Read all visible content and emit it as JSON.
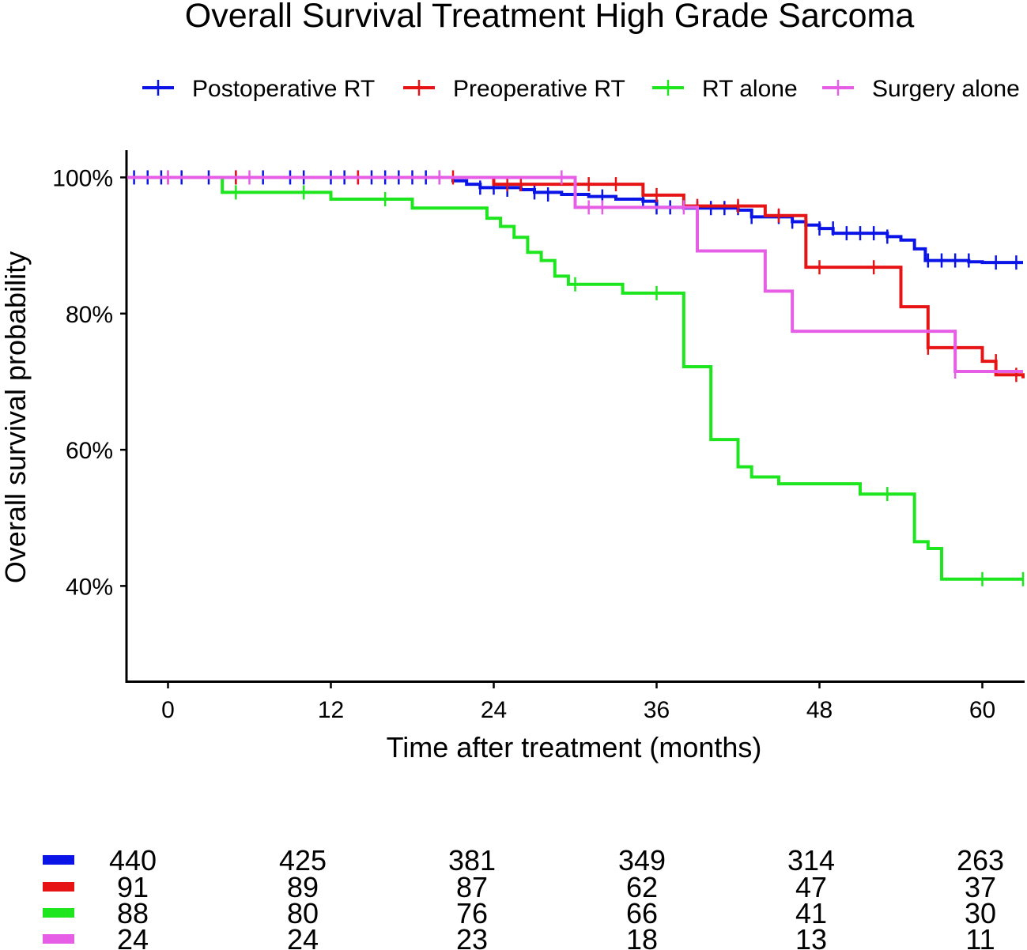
{
  "chart_data": {
    "type": "line",
    "subtype": "kaplan-meier",
    "title": "Overall Survival Treatment High Grade Sarcoma",
    "xlabel": "Time after treatment (months)",
    "ylabel": "Overall survival probability",
    "xlim": [
      -3,
      63
    ],
    "ylim": [
      26,
      104
    ],
    "xticks": [
      0,
      12,
      24,
      36,
      48,
      60
    ],
    "yticks": [
      40,
      60,
      80,
      100
    ],
    "ytick_labels": [
      "40%",
      "60%",
      "80%",
      "100%"
    ],
    "legend_position": "top",
    "series": [
      {
        "name": "Postoperative RT",
        "color": "#0a14e6",
        "steps": [
          [
            -3,
            100
          ],
          [
            21,
            99.5
          ],
          [
            22,
            99
          ],
          [
            23,
            98.5
          ],
          [
            26,
            98.2
          ],
          [
            27,
            97.8
          ],
          [
            29,
            97.5
          ],
          [
            31,
            97.2
          ],
          [
            33,
            96.8
          ],
          [
            35,
            96.5
          ],
          [
            36,
            95.6
          ],
          [
            38,
            95.5
          ],
          [
            42,
            95.2
          ],
          [
            43,
            94.2
          ],
          [
            46,
            93.5
          ],
          [
            47,
            93
          ],
          [
            48,
            92.5
          ],
          [
            49,
            91.8
          ],
          [
            53,
            91.3
          ],
          [
            54,
            90.8
          ],
          [
            55,
            89.5
          ],
          [
            55.8,
            87.8
          ],
          [
            59,
            87.6
          ],
          [
            60,
            87.5
          ],
          [
            63,
            87.5
          ]
        ],
        "censors": [
          [
            -2.5,
            100
          ],
          [
            -1.5,
            100
          ],
          [
            -0.5,
            100
          ],
          [
            1,
            100
          ],
          [
            3,
            100
          ],
          [
            5,
            100
          ],
          [
            7,
            100
          ],
          [
            9,
            100
          ],
          [
            10,
            100
          ],
          [
            12,
            100
          ],
          [
            13,
            100
          ],
          [
            14,
            100
          ],
          [
            15,
            100
          ],
          [
            16,
            100
          ],
          [
            17,
            100
          ],
          [
            18,
            100
          ],
          [
            19,
            100
          ],
          [
            20,
            100
          ],
          [
            23,
            98.5
          ],
          [
            24,
            98.5
          ],
          [
            25,
            98.2
          ],
          [
            27,
            97.8
          ],
          [
            28,
            97.5
          ],
          [
            30,
            97.5
          ],
          [
            32,
            97.2
          ],
          [
            35,
            96.8
          ],
          [
            36,
            95.6
          ],
          [
            37,
            95.6
          ],
          [
            39,
            95.5
          ],
          [
            40,
            95.5
          ],
          [
            41,
            95.5
          ],
          [
            42,
            95.5
          ],
          [
            43,
            94.2
          ],
          [
            45,
            94.2
          ],
          [
            46,
            93.5
          ],
          [
            48,
            92.5
          ],
          [
            49,
            92.5
          ],
          [
            50,
            91.8
          ],
          [
            51,
            91.8
          ],
          [
            52,
            91.8
          ],
          [
            53,
            91.3
          ],
          [
            56,
            87.8
          ],
          [
            57,
            87.8
          ],
          [
            58,
            87.8
          ],
          [
            59,
            87.8
          ],
          [
            61,
            87.5
          ],
          [
            62.5,
            87.5
          ]
        ]
      },
      {
        "name": "Preoperative RT",
        "color": "#e61414",
        "steps": [
          [
            -3,
            100
          ],
          [
            24,
            99
          ],
          [
            35,
            97.4
          ],
          [
            38,
            95.8
          ],
          [
            44,
            94.4
          ],
          [
            47,
            86.8
          ],
          [
            54,
            81
          ],
          [
            56,
            75
          ],
          [
            60,
            73
          ],
          [
            61,
            71
          ],
          [
            63,
            70.5
          ]
        ],
        "censors": [
          [
            0,
            100
          ],
          [
            5,
            100
          ],
          [
            14,
            100
          ],
          [
            21,
            100
          ],
          [
            25,
            99
          ],
          [
            26,
            99
          ],
          [
            31,
            99
          ],
          [
            33,
            99
          ],
          [
            36,
            97.4
          ],
          [
            39,
            95.8
          ],
          [
            42,
            95.8
          ],
          [
            45,
            94.4
          ],
          [
            48,
            86.8
          ],
          [
            52,
            86.8
          ],
          [
            56,
            75
          ],
          [
            61,
            73
          ],
          [
            62.5,
            71
          ]
        ]
      },
      {
        "name": "RT alone",
        "color": "#1ee61e",
        "steps": [
          [
            -3,
            100
          ],
          [
            4,
            97.8
          ],
          [
            12,
            96.8
          ],
          [
            18,
            95.5
          ],
          [
            23.5,
            94
          ],
          [
            24.5,
            92.8
          ],
          [
            25.5,
            91.2
          ],
          [
            26.5,
            89
          ],
          [
            27.5,
            87.8
          ],
          [
            28.5,
            85.5
          ],
          [
            29.5,
            84.3
          ],
          [
            33.5,
            83
          ],
          [
            38,
            72.2
          ],
          [
            40,
            61.5
          ],
          [
            42,
            57.5
          ],
          [
            43,
            56
          ],
          [
            45,
            55
          ],
          [
            51,
            53.5
          ],
          [
            55,
            46.5
          ],
          [
            56,
            45.5
          ],
          [
            57,
            41
          ],
          [
            63,
            41
          ]
        ],
        "censors": [
          [
            5,
            97.8
          ],
          [
            10,
            97.8
          ],
          [
            16,
            96.8
          ],
          [
            30,
            84.3
          ],
          [
            36,
            83
          ],
          [
            53,
            53.5
          ],
          [
            60,
            41
          ],
          [
            63,
            41
          ]
        ]
      },
      {
        "name": "Surgery alone",
        "color": "#e65ee6",
        "steps": [
          [
            -3,
            100
          ],
          [
            30,
            95.6
          ],
          [
            39,
            89.2
          ],
          [
            44,
            83.3
          ],
          [
            46,
            77.4
          ],
          [
            58,
            71.5
          ],
          [
            63,
            71.5
          ]
        ],
        "censors": [
          [
            0,
            100
          ],
          [
            6,
            100
          ],
          [
            20,
            100
          ],
          [
            29,
            100
          ],
          [
            31,
            95.6
          ],
          [
            32,
            95.6
          ],
          [
            38,
            95.6
          ],
          [
            58,
            71.5
          ]
        ]
      }
    ],
    "risk_table": {
      "times": [
        0,
        12,
        24,
        36,
        48,
        60
      ],
      "rows": [
        {
          "name": "Postoperative RT",
          "values": [
            "440",
            "425",
            "381",
            "349",
            "314",
            "263"
          ]
        },
        {
          "name": "Preoperative RT",
          "values": [
            "91",
            "89",
            "87",
            "62",
            "47",
            "37"
          ]
        },
        {
          "name": "RT alone",
          "values": [
            "88",
            "80",
            "76",
            "66",
            "41",
            "30"
          ]
        },
        {
          "name": "Surgery alone",
          "values": [
            "24",
            "24",
            "23",
            "18",
            "13",
            "11"
          ]
        }
      ]
    }
  }
}
